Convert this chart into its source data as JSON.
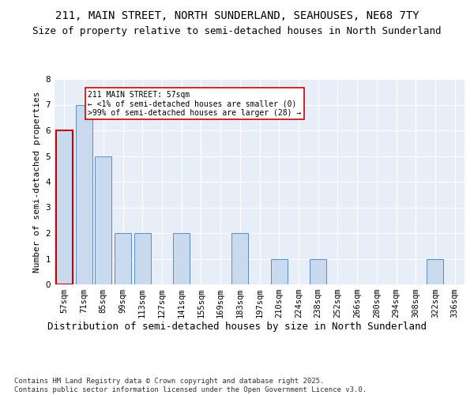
{
  "title1": "211, MAIN STREET, NORTH SUNDERLAND, SEAHOUSES, NE68 7TY",
  "title2": "Size of property relative to semi-detached houses in North Sunderland",
  "xlabel": "Distribution of semi-detached houses by size in North Sunderland",
  "ylabel": "Number of semi-detached properties",
  "categories": [
    "57sqm",
    "71sqm",
    "85sqm",
    "99sqm",
    "113sqm",
    "127sqm",
    "141sqm",
    "155sqm",
    "169sqm",
    "183sqm",
    "197sqm",
    "210sqm",
    "224sqm",
    "238sqm",
    "252sqm",
    "266sqm",
    "280sqm",
    "294sqm",
    "308sqm",
    "322sqm",
    "336sqm"
  ],
  "values": [
    6,
    7,
    5,
    2,
    2,
    0,
    2,
    0,
    0,
    2,
    0,
    1,
    0,
    1,
    0,
    0,
    0,
    0,
    0,
    1,
    0
  ],
  "highlight_index": 0,
  "bar_color": "#c9d9ee",
  "bar_edge_color": "#5b8cc8",
  "highlight_bar_edge_color": "#cc0000",
  "annotation_text": "211 MAIN STREET: 57sqm\n← <1% of semi-detached houses are smaller (0)\n>99% of semi-detached houses are larger (28) →",
  "annotation_box_color": "#ffffff",
  "annotation_box_edge": "#cc0000",
  "footnote": "Contains HM Land Registry data © Crown copyright and database right 2025.\nContains public sector information licensed under the Open Government Licence v3.0.",
  "ylim": [
    0,
    8
  ],
  "yticks": [
    0,
    1,
    2,
    3,
    4,
    5,
    6,
    7,
    8
  ],
  "background_color": "#e8eef8",
  "fig_background": "#ffffff",
  "title1_fontsize": 10,
  "title2_fontsize": 9,
  "xlabel_fontsize": 9,
  "ylabel_fontsize": 8,
  "tick_fontsize": 7.5,
  "footnote_fontsize": 6.5
}
